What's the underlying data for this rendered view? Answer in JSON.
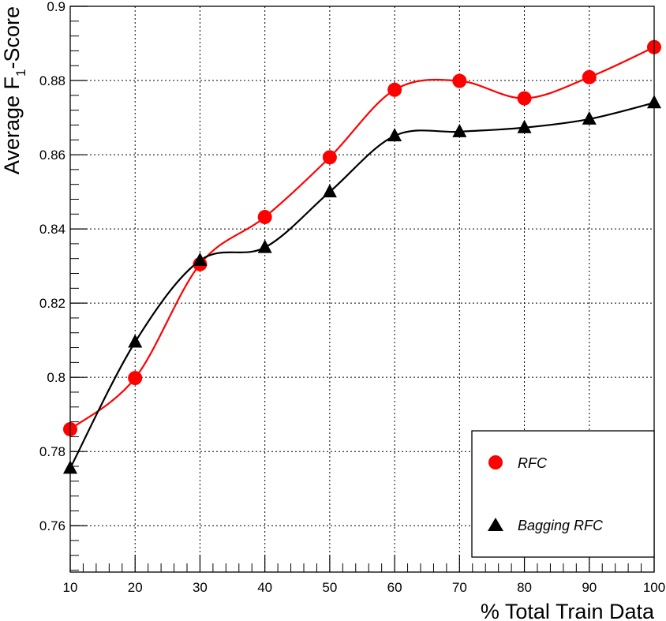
{
  "chart_data": {
    "type": "line",
    "xlabel": "% Total Train Data",
    "ylabel": {
      "main": "Average F",
      "subscript": "1",
      "suffix": "-Score"
    },
    "x": [
      10,
      20,
      30,
      40,
      50,
      60,
      70,
      80,
      90,
      100
    ],
    "x_ticks": [
      "10",
      "20",
      "30",
      "40",
      "50",
      "60",
      "70",
      "80",
      "90",
      "100"
    ],
    "y_ticks": [
      "0.76",
      "0.78",
      "0.8",
      "0.82",
      "0.84",
      "0.86",
      "0.88",
      "0.9"
    ],
    "xlim": [
      10,
      100
    ],
    "ylim": [
      0.7475,
      0.9
    ],
    "grid": true,
    "legend_position": "bottom-right",
    "series": [
      {
        "name": "RFC",
        "marker": "circle",
        "color": "#ff0000",
        "values": [
          0.786,
          0.7998,
          0.8305,
          0.8432,
          0.8593,
          0.8775,
          0.8799,
          0.8752,
          0.8809,
          0.889
        ]
      },
      {
        "name": "Bagging RFC",
        "marker": "triangle",
        "color": "#000000",
        "values": [
          0.7755,
          0.8095,
          0.8315,
          0.835,
          0.85,
          0.8651,
          0.8662,
          0.8673,
          0.8696,
          0.874
        ]
      }
    ]
  }
}
